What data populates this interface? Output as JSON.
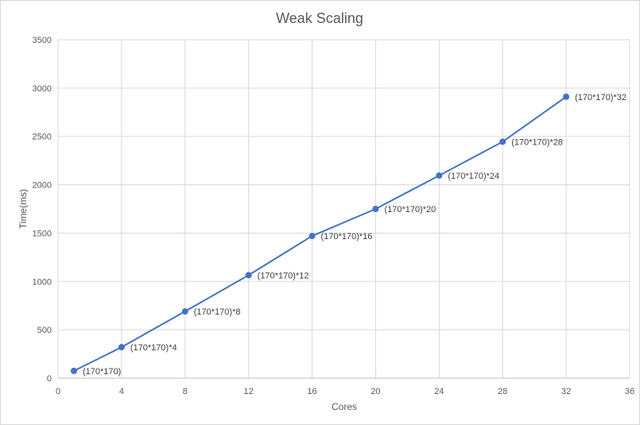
{
  "chart_data": {
    "type": "scatter",
    "title": "Weak Scaling",
    "xlabel": "Cores",
    "ylabel": "Time(ms)",
    "xlim": [
      0,
      36
    ],
    "ylim": [
      0,
      3500
    ],
    "x_ticks": [
      0,
      4,
      8,
      12,
      16,
      20,
      24,
      28,
      32,
      36
    ],
    "y_ticks": [
      0,
      500,
      1000,
      1500,
      2000,
      2500,
      3000,
      3500
    ],
    "grid": true,
    "series": [
      {
        "points": [
          {
            "x": 1,
            "y": 75,
            "label": "(170*170)"
          },
          {
            "x": 4,
            "y": 320,
            "label": "(170*170)*4"
          },
          {
            "x": 8,
            "y": 690,
            "label": "(170*170)*8"
          },
          {
            "x": 12,
            "y": 1065,
            "label": "(170*170)*12"
          },
          {
            "x": 16,
            "y": 1470,
            "label": "(170*170)*16"
          },
          {
            "x": 20,
            "y": 1750,
            "label": "(170*170)*20"
          },
          {
            "x": 24,
            "y": 2095,
            "label": "(170*170)*24"
          },
          {
            "x": 28,
            "y": 2445,
            "label": "(170*170)*28"
          },
          {
            "x": 32,
            "y": 2910,
            "label": "(170*170)*32"
          }
        ]
      }
    ],
    "colors": {
      "series": "#4472c4",
      "grid": "#d9d9d9",
      "axis": "#bfbfbf",
      "text": "#595959"
    }
  }
}
